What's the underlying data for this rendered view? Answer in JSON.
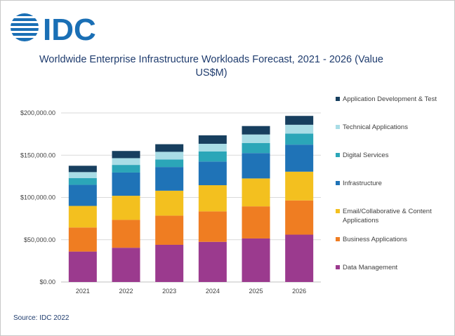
{
  "logo_text": "IDC",
  "source": "Source: IDC 2022",
  "colors": {
    "Data Management": "#9b3a8e",
    "Business Applications": "#ef7d22",
    "Email/Collaborative & Content Applications": "#f3c01f",
    "Infrastructure": "#1f73b7",
    "Digital Services": "#2ba6b8",
    "Technical Applications": "#a9dde6",
    "Application Development & Test": "#173f5f",
    "brand": "#1a6fb5",
    "title": "#1f3c6e"
  },
  "chart_data": {
    "type": "bar",
    "stacked": true,
    "title": "Worldwide Enterprise Infrastructure Workloads Forecast, 2021 - 2026 (Value US$M)",
    "categories": [
      "2021",
      "2022",
      "2023",
      "2024",
      "2025",
      "2026"
    ],
    "ylim": [
      0,
      200000
    ],
    "yticks": [
      "$0.00",
      "$50,000.00",
      "$100,000.00",
      "$150,000.00",
      "$200,000.00"
    ],
    "ytick_values": [
      0,
      50000,
      100000,
      150000,
      200000
    ],
    "legend_position": "right",
    "series": [
      {
        "name": "Data Management",
        "values": [
          36000,
          40500,
          44000,
          47500,
          51500,
          56000
        ]
      },
      {
        "name": "Business Applications",
        "values": [
          28500,
          33000,
          34500,
          36000,
          38000,
          40500
        ]
      },
      {
        "name": "Email/Collaborative & Content Applications",
        "values": [
          25500,
          28500,
          29500,
          31000,
          33000,
          34000
        ]
      },
      {
        "name": "Infrastructure",
        "values": [
          25000,
          27500,
          28000,
          28000,
          30000,
          32000
        ]
      },
      {
        "name": "Digital Services",
        "values": [
          8000,
          9000,
          9000,
          12000,
          12000,
          13000
        ]
      },
      {
        "name": "Technical Applications",
        "values": [
          7000,
          8000,
          9000,
          9000,
          10000,
          10500
        ]
      },
      {
        "name": "Application Development & Test",
        "values": [
          7500,
          8500,
          9000,
          10000,
          10000,
          10500
        ]
      }
    ]
  }
}
